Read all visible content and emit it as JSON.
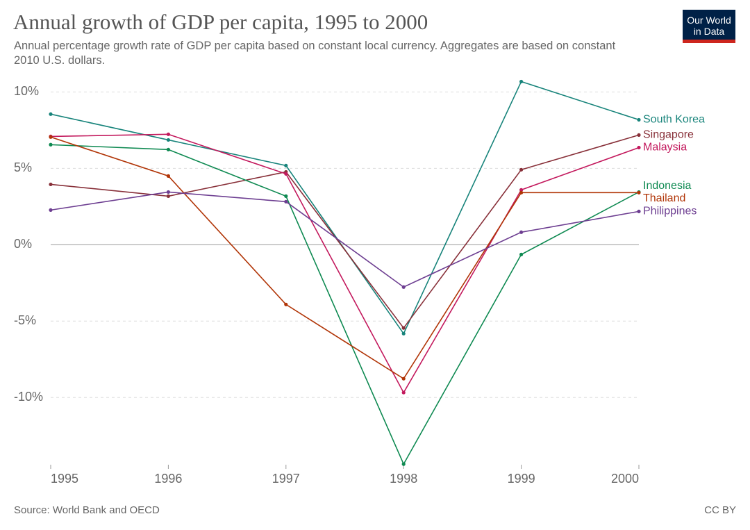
{
  "chart_data": {
    "type": "line",
    "title": "Annual growth of GDP per capita, 1995 to 2000",
    "subtitle": "Annual percentage growth rate of GDP per capita based on constant local currency. Aggregates are based on constant 2010 U.S. dollars.",
    "logo": "Our World in Data",
    "source": "Source: World Bank and OECD",
    "license": "CC BY",
    "x": [
      1995,
      1996,
      1997,
      1998,
      1999,
      2000
    ],
    "xlim": [
      1995,
      2000
    ],
    "xticks": [
      1995,
      1996,
      1997,
      1998,
      1999,
      2000
    ],
    "ylim": [
      -14.4,
      10.7
    ],
    "yticks": [
      {
        "value": -10,
        "label": "-10%"
      },
      {
        "value": -5,
        "label": "-5%"
      },
      {
        "value": 0,
        "label": "0%"
      },
      {
        "value": 5,
        "label": "5%"
      },
      {
        "value": 10,
        "label": "10%"
      }
    ],
    "grid": true,
    "series": [
      {
        "name": "South Korea",
        "color": "#18847b",
        "values": [
          8.55,
          6.86,
          5.18,
          -5.82,
          10.68,
          8.18
        ]
      },
      {
        "name": "Singapore",
        "color": "#883039",
        "values": [
          3.95,
          3.18,
          4.77,
          -5.45,
          4.91,
          7.18
        ]
      },
      {
        "name": "Malaysia",
        "color": "#c3195d",
        "values": [
          7.09,
          7.23,
          4.64,
          -9.68,
          3.59,
          6.36
        ]
      },
      {
        "name": "Indonesia",
        "color": "#0f8a52",
        "values": [
          6.55,
          6.23,
          3.18,
          -14.36,
          -0.64,
          3.45
        ]
      },
      {
        "name": "Thailand",
        "color": "#b13507",
        "values": [
          7.05,
          4.5,
          -3.91,
          -8.77,
          3.41,
          3.41
        ]
      },
      {
        "name": "Philippines",
        "color": "#6d3e91",
        "values": [
          2.27,
          3.45,
          2.82,
          -2.77,
          0.82,
          2.18
        ]
      }
    ]
  }
}
